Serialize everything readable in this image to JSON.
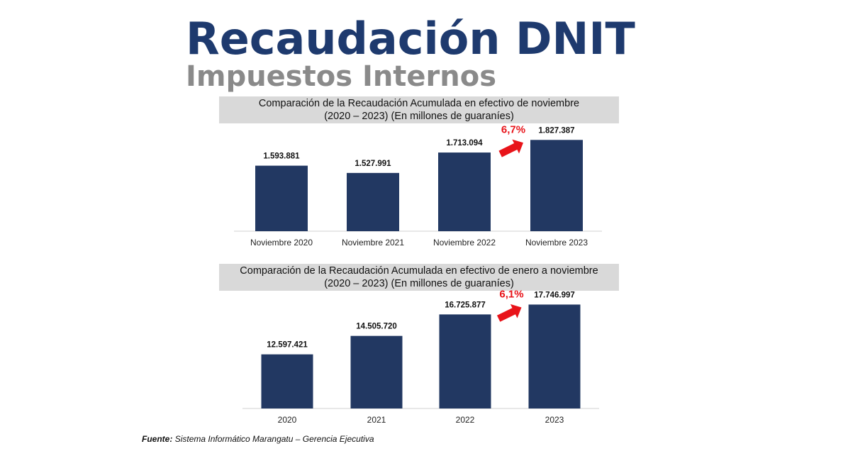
{
  "header": {
    "title": "Recaudación DNIT",
    "subtitle": "Impuestos Internos"
  },
  "colors": {
    "title": "#1e3a6e",
    "subtitle": "#8a8a8a",
    "bar": "#223862",
    "growth": "#e8141a",
    "header_bg": "#d9d9d9"
  },
  "charts": [
    {
      "title_line1": "Comparación de la Recaudación Acumulada en efectivo de noviembre",
      "title_line2": "(2020 – 2023) (En millones de guaraníes)",
      "growth_label": "6,7%",
      "growth_icon": "arrow-right-up-icon"
    },
    {
      "title_line1": "Comparación de la Recaudación Acumulada en efectivo de enero a noviembre",
      "title_line2": "(2020 – 2023) (En millones de guaraníes)",
      "growth_label": "6,1%",
      "growth_icon": "arrow-right-up-icon"
    }
  ],
  "chart_data": [
    {
      "type": "bar",
      "title": "Comparación de la Recaudación Acumulada en efectivo de noviembre (2020 – 2023) (En millones de guaraníes)",
      "categories": [
        "Noviembre 2020",
        "Noviembre 2021",
        "Noviembre 2022",
        "Noviembre 2023"
      ],
      "values": [
        1593881,
        1527991,
        1713094,
        1827387
      ],
      "value_labels": [
        "1.593.881",
        "1.527.991",
        "1.713.094",
        "1.827.387"
      ],
      "ylim": [
        1000000,
        1900000
      ],
      "grid": false,
      "annotations": [
        "6,7%"
      ]
    },
    {
      "type": "bar",
      "title": "Comparación de la Recaudación Acumulada en efectivo de enero a noviembre (2020 – 2023) (En millones de guaraníes)",
      "categories": [
        "2020",
        "2021",
        "2022",
        "2023"
      ],
      "values": [
        12597421,
        14505720,
        16725877,
        17746997
      ],
      "value_labels": [
        "12.597.421",
        "14.505.720",
        "16.725.877",
        "17.746.997"
      ],
      "ylim": [
        7000000,
        18000000
      ],
      "grid": false,
      "annotations": [
        "6,1%"
      ]
    }
  ],
  "footer": {
    "source_label": "Fuente:",
    "source_text": "Sistema Informático Marangatu – Gerencia Ejecutiva"
  }
}
